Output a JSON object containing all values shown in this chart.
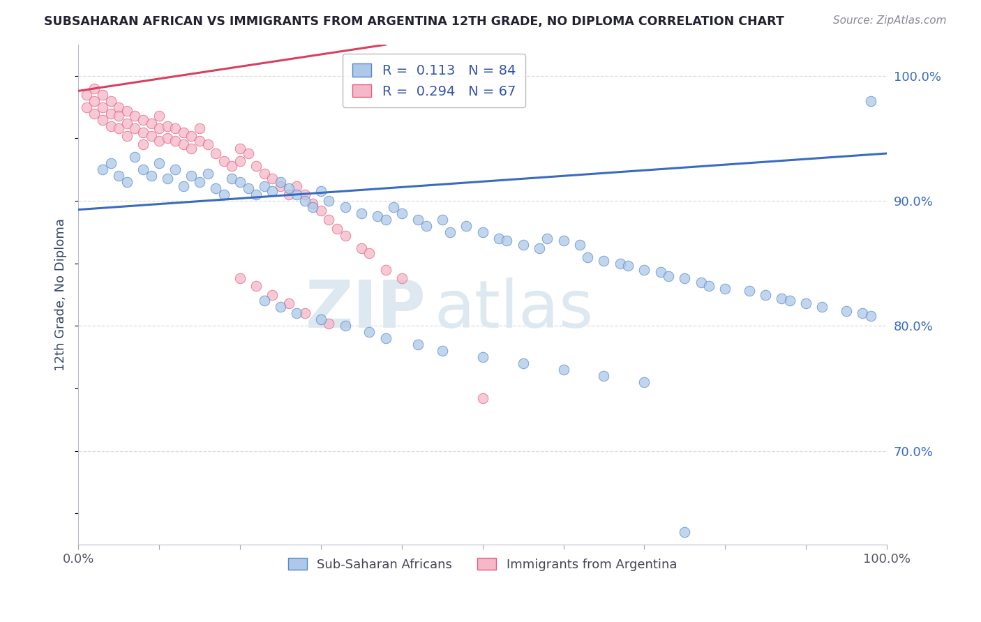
{
  "title": "SUBSAHARAN AFRICAN VS IMMIGRANTS FROM ARGENTINA 12TH GRADE, NO DIPLOMA CORRELATION CHART",
  "source": "Source: ZipAtlas.com",
  "ylabel": "12th Grade, No Diploma",
  "xlim": [
    0.0,
    1.0
  ],
  "ylim": [
    0.625,
    1.025
  ],
  "x_tick_labels": [
    "0.0%",
    "100.0%"
  ],
  "y_ticks_right": [
    0.7,
    0.8,
    0.9,
    1.0
  ],
  "y_tick_labels_right": [
    "70.0%",
    "80.0%",
    "90.0%",
    "100.0%"
  ],
  "legend_blue_r": "0.113",
  "legend_blue_n": "84",
  "legend_pink_r": "0.294",
  "legend_pink_n": "67",
  "blue_fill_color": "#adc8e8",
  "pink_fill_color": "#f5b8c8",
  "blue_edge_color": "#5588cc",
  "pink_edge_color": "#e06080",
  "blue_line_color": "#3a6bbf",
  "pink_line_color": "#d94060",
  "text_color": "#3355aa",
  "grid_color": "#dddddd",
  "watermark_color": "#dde8f0",
  "blue_scatter_x": [
    0.03,
    0.04,
    0.05,
    0.06,
    0.07,
    0.08,
    0.09,
    0.1,
    0.11,
    0.12,
    0.13,
    0.14,
    0.15,
    0.16,
    0.17,
    0.18,
    0.19,
    0.2,
    0.21,
    0.22,
    0.23,
    0.24,
    0.25,
    0.26,
    0.27,
    0.28,
    0.29,
    0.3,
    0.31,
    0.33,
    0.35,
    0.37,
    0.38,
    0.39,
    0.4,
    0.42,
    0.43,
    0.45,
    0.46,
    0.48,
    0.5,
    0.52,
    0.53,
    0.55,
    0.57,
    0.58,
    0.6,
    0.62,
    0.63,
    0.65,
    0.67,
    0.68,
    0.7,
    0.72,
    0.73,
    0.75,
    0.77,
    0.78,
    0.8,
    0.83,
    0.85,
    0.87,
    0.88,
    0.9,
    0.92,
    0.95,
    0.97,
    0.98,
    0.23,
    0.25,
    0.27,
    0.3,
    0.33,
    0.36,
    0.38,
    0.42,
    0.45,
    0.5,
    0.55,
    0.6,
    0.65,
    0.7,
    0.75,
    0.98
  ],
  "blue_scatter_y": [
    0.925,
    0.93,
    0.92,
    0.915,
    0.935,
    0.925,
    0.92,
    0.93,
    0.918,
    0.925,
    0.912,
    0.92,
    0.915,
    0.922,
    0.91,
    0.905,
    0.918,
    0.915,
    0.91,
    0.905,
    0.912,
    0.908,
    0.915,
    0.91,
    0.905,
    0.9,
    0.895,
    0.908,
    0.9,
    0.895,
    0.89,
    0.888,
    0.885,
    0.895,
    0.89,
    0.885,
    0.88,
    0.885,
    0.875,
    0.88,
    0.875,
    0.87,
    0.868,
    0.865,
    0.862,
    0.87,
    0.868,
    0.865,
    0.855,
    0.852,
    0.85,
    0.848,
    0.845,
    0.843,
    0.84,
    0.838,
    0.835,
    0.832,
    0.83,
    0.828,
    0.825,
    0.822,
    0.82,
    0.818,
    0.815,
    0.812,
    0.81,
    0.808,
    0.82,
    0.815,
    0.81,
    0.805,
    0.8,
    0.795,
    0.79,
    0.785,
    0.78,
    0.775,
    0.77,
    0.765,
    0.76,
    0.755,
    0.635,
    0.98
  ],
  "pink_scatter_x": [
    0.01,
    0.01,
    0.02,
    0.02,
    0.02,
    0.03,
    0.03,
    0.03,
    0.04,
    0.04,
    0.04,
    0.05,
    0.05,
    0.05,
    0.06,
    0.06,
    0.06,
    0.07,
    0.07,
    0.08,
    0.08,
    0.08,
    0.09,
    0.09,
    0.1,
    0.1,
    0.1,
    0.11,
    0.11,
    0.12,
    0.12,
    0.13,
    0.13,
    0.14,
    0.14,
    0.15,
    0.15,
    0.16,
    0.17,
    0.18,
    0.19,
    0.2,
    0.2,
    0.21,
    0.22,
    0.23,
    0.24,
    0.25,
    0.26,
    0.27,
    0.28,
    0.29,
    0.3,
    0.31,
    0.32,
    0.33,
    0.35,
    0.36,
    0.38,
    0.4,
    0.2,
    0.22,
    0.24,
    0.26,
    0.28,
    0.31,
    0.5
  ],
  "pink_scatter_y": [
    0.985,
    0.975,
    0.99,
    0.98,
    0.97,
    0.985,
    0.975,
    0.965,
    0.98,
    0.97,
    0.96,
    0.975,
    0.968,
    0.958,
    0.972,
    0.962,
    0.952,
    0.968,
    0.958,
    0.965,
    0.955,
    0.945,
    0.962,
    0.952,
    0.968,
    0.958,
    0.948,
    0.96,
    0.95,
    0.958,
    0.948,
    0.955,
    0.945,
    0.952,
    0.942,
    0.958,
    0.948,
    0.945,
    0.938,
    0.932,
    0.928,
    0.942,
    0.932,
    0.938,
    0.928,
    0.922,
    0.918,
    0.912,
    0.905,
    0.912,
    0.905,
    0.898,
    0.892,
    0.885,
    0.878,
    0.872,
    0.862,
    0.858,
    0.845,
    0.838,
    0.838,
    0.832,
    0.825,
    0.818,
    0.81,
    0.802,
    0.742
  ],
  "blue_trend_x": [
    0.0,
    1.0
  ],
  "blue_trend_y": [
    0.893,
    0.938
  ],
  "pink_trend_x": [
    0.0,
    0.38
  ],
  "pink_trend_y": [
    0.988,
    1.025
  ]
}
